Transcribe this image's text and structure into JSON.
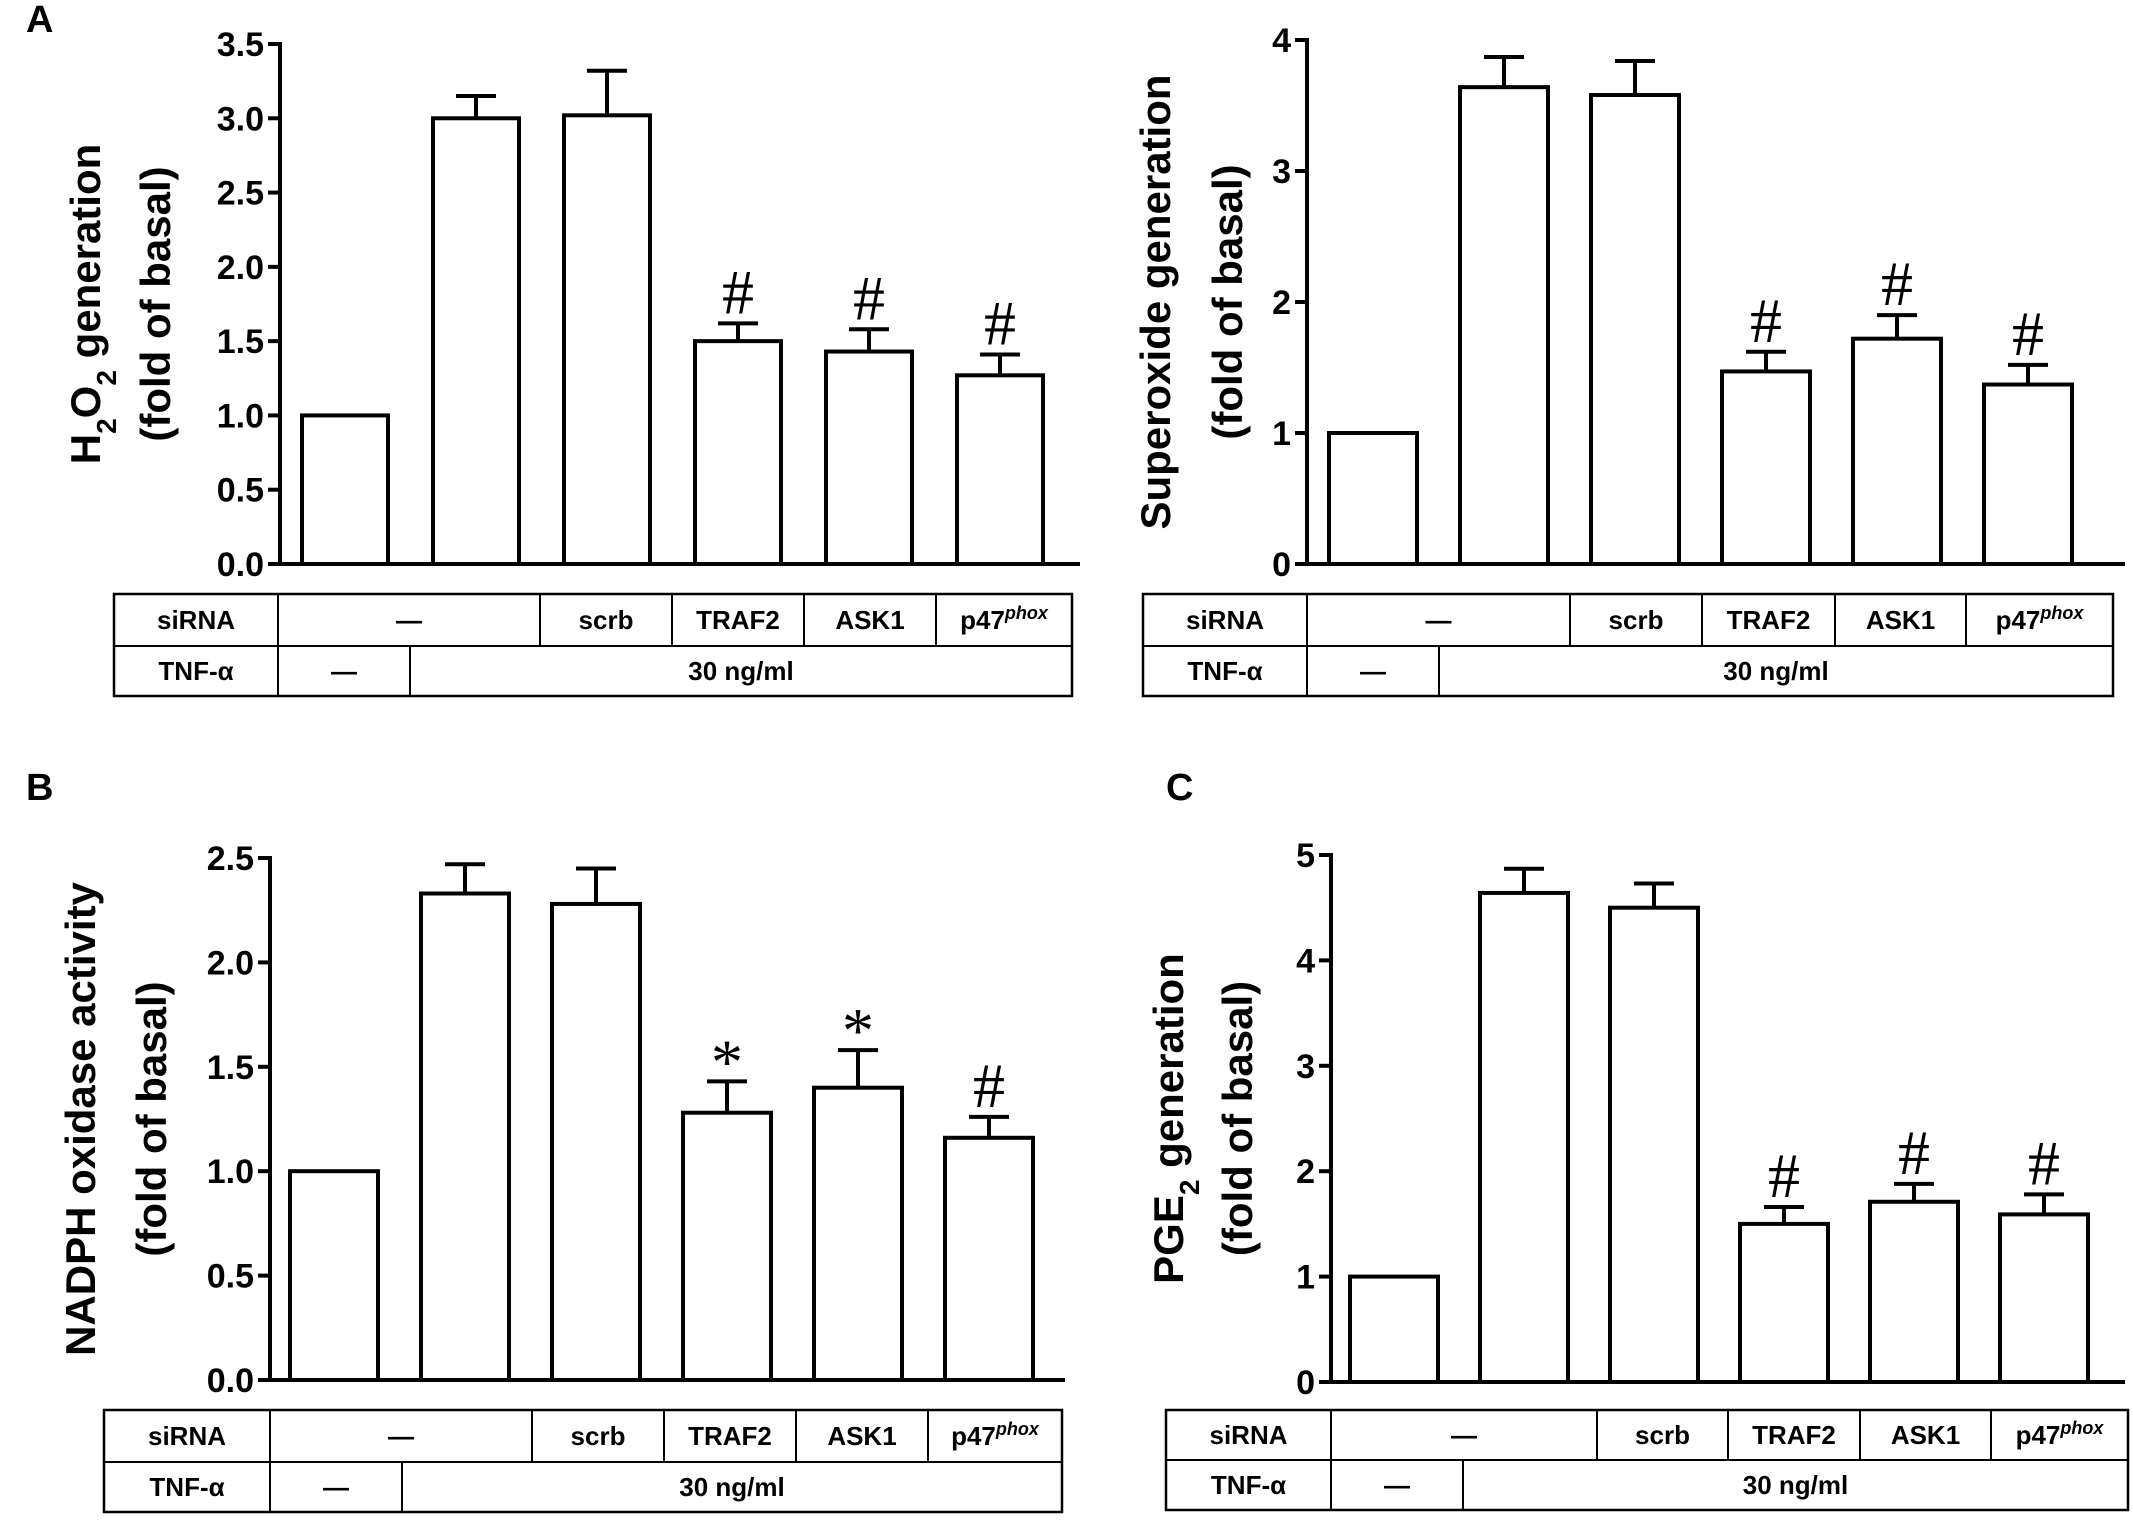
{
  "chart_data": [
    {
      "panel": "A",
      "type": "bar",
      "ylabel_line1": "H2O2 generation",
      "ylabel_main": "H",
      "ylabel_sub1": "2",
      "ylabel_mid": "O",
      "ylabel_sub2": "2",
      "ylabel_rest": " generation",
      "ylabel_line2": "(fold of basal)",
      "ylim": [
        0,
        3.5
      ],
      "yticks": [
        "0.0",
        "0.5",
        "1.0",
        "1.5",
        "2.0",
        "2.5",
        "3.0",
        "3.5"
      ],
      "ytick_values": [
        0,
        0.5,
        1.0,
        1.5,
        2.0,
        2.5,
        3.0,
        3.5
      ],
      "values": [
        1.0,
        3.0,
        3.02,
        1.5,
        1.43,
        1.27
      ],
      "errors": [
        0,
        0.15,
        0.3,
        0.12,
        0.15,
        0.14
      ],
      "annotations": [
        "",
        "",
        "",
        "#",
        "#",
        "#"
      ],
      "table": {
        "row1_label": "siRNA",
        "row1_cells": [
          "—",
          "scrb",
          "TRAF2",
          "ASK1",
          "p47"
        ],
        "row1_last_sup": "phox",
        "row2_label": "TNF-α",
        "row2_cells": [
          "—",
          "30 ng/ml"
        ]
      }
    },
    {
      "panel": "",
      "type": "bar",
      "ylabel_line1": "Superoxide generation",
      "ylabel_line2": "(fold of basal)",
      "ylim": [
        0,
        4
      ],
      "yticks": [
        "0",
        "1",
        "2",
        "3",
        "4"
      ],
      "ytick_values": [
        0,
        1,
        2,
        3,
        4
      ],
      "values": [
        1.0,
        3.64,
        3.58,
        1.47,
        1.72,
        1.37
      ],
      "errors": [
        0,
        0.23,
        0.26,
        0.15,
        0.18,
        0.15
      ],
      "annotations": [
        "",
        "",
        "",
        "#",
        "#",
        "#"
      ],
      "table": {
        "row1_label": "siRNA",
        "row1_cells": [
          "—",
          "scrb",
          "TRAF2",
          "ASK1",
          "p47"
        ],
        "row1_last_sup": "phox",
        "row2_label": "TNF-α",
        "row2_cells": [
          "—",
          "30 ng/ml"
        ]
      }
    },
    {
      "panel": "B",
      "type": "bar",
      "ylabel_line1": "NADPH oxidase activity",
      "ylabel_line2": "(fold of basal)",
      "ylim": [
        0,
        2.5
      ],
      "yticks": [
        "0.0",
        "0.5",
        "1.0",
        "1.5",
        "2.0",
        "2.5"
      ],
      "ytick_values": [
        0,
        0.5,
        1.0,
        1.5,
        2.0,
        2.5
      ],
      "values": [
        1.0,
        2.33,
        2.28,
        1.28,
        1.4,
        1.16
      ],
      "errors": [
        0,
        0.14,
        0.17,
        0.15,
        0.18,
        0.1
      ],
      "annotations": [
        "",
        "",
        "",
        "*",
        "*",
        "#"
      ],
      "table": {
        "row1_label": "siRNA",
        "row1_cells": [
          "—",
          "scrb",
          "TRAF2",
          "ASK1",
          "p47"
        ],
        "row1_last_sup": "phox",
        "row2_label": "TNF-α",
        "row2_cells": [
          "—",
          "30 ng/ml"
        ]
      }
    },
    {
      "panel": "C",
      "type": "bar",
      "ylabel_main": "PGE",
      "ylabel_sub1": "2",
      "ylabel_rest": " generation",
      "ylabel_line1": "PGE2 generation",
      "ylabel_line2": "(fold of basal)",
      "ylim": [
        0,
        5
      ],
      "yticks": [
        "0",
        "1",
        "2",
        "3",
        "4",
        "5"
      ],
      "ytick_values": [
        0,
        1,
        2,
        3,
        4,
        5
      ],
      "values": [
        1.0,
        4.64,
        4.5,
        1.5,
        1.71,
        1.59
      ],
      "errors": [
        0,
        0.23,
        0.23,
        0.16,
        0.17,
        0.19
      ],
      "annotations": [
        "",
        "",
        "",
        "#",
        "#",
        "#"
      ],
      "table": {
        "row1_label": "siRNA",
        "row1_cells": [
          "—",
          "scrb",
          "TRAF2",
          "ASK1",
          "p47"
        ],
        "row1_last_sup": "phox",
        "row2_label": "TNF-α",
        "row2_cells": [
          "—",
          "30 ng/ml"
        ]
      }
    }
  ]
}
